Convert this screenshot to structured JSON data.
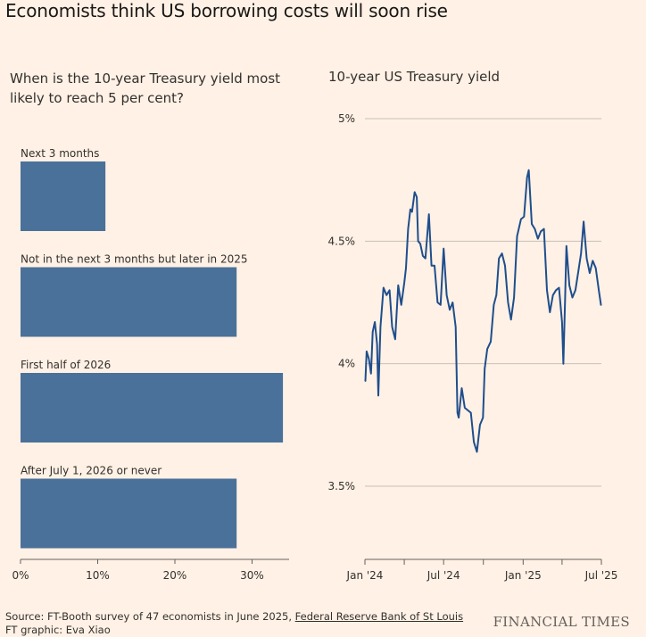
{
  "title": "Economists think US borrowing costs will soon rise",
  "source": {
    "prefix": "Source: FT-Booth survey of 47 economists in June 2025, ",
    "link_text": "Federal Reserve Bank of St Louis",
    "credit": "FT graphic: Eva Xiao"
  },
  "brand": "FINANCIAL TIMES",
  "colors": {
    "bar": "#4a7199",
    "line": "#1f4e8c",
    "grid": "#c8c0b9",
    "background": "#fff1e5"
  },
  "chart_data": [
    {
      "type": "bar",
      "orientation": "horizontal",
      "title": "When is the 10-year Treasury yield most likely to reach 5 per cent?",
      "categories": [
        "Next 3 months",
        "Not in the next 3 months but later in 2025",
        "First half of 2026",
        "After July 1, 2026 or never"
      ],
      "values": [
        11,
        28,
        34,
        28
      ],
      "unit": "%",
      "xlim": [
        0,
        34
      ],
      "xticks": [
        0,
        10,
        20,
        30
      ],
      "xtick_labels": [
        "0%",
        "10%",
        "20%",
        "30%"
      ]
    },
    {
      "type": "line",
      "title": "10-year US Treasury yield",
      "unit": "%",
      "ylim": [
        3.2,
        5.0
      ],
      "yticks": [
        3.5,
        4.0,
        4.5,
        5.0
      ],
      "ytick_labels": [
        "3.5%",
        "4%",
        "4.5%",
        "5%"
      ],
      "xlim": [
        "2024-01-01",
        "2025-07-01"
      ],
      "xtick_labels": [
        "Jan '24",
        "Jul '24",
        "Jan '25",
        "Jul '25"
      ],
      "xticks": [
        "2024-01-01",
        "2024-04-01",
        "2024-07-01",
        "2024-10-01",
        "2025-01-01",
        "2025-04-01",
        "2025-07-01"
      ],
      "grid": true,
      "x": [
        "2024-01-02",
        "2024-01-05",
        "2024-01-10",
        "2024-01-15",
        "2024-01-19",
        "2024-01-24",
        "2024-01-29",
        "2024-02-01",
        "2024-02-06",
        "2024-02-13",
        "2024-02-20",
        "2024-02-27",
        "2024-03-04",
        "2024-03-11",
        "2024-03-18",
        "2024-03-25",
        "2024-04-01",
        "2024-04-05",
        "2024-04-10",
        "2024-04-15",
        "2024-04-19",
        "2024-04-25",
        "2024-04-30",
        "2024-05-03",
        "2024-05-08",
        "2024-05-14",
        "2024-05-20",
        "2024-05-28",
        "2024-06-03",
        "2024-06-10",
        "2024-06-17",
        "2024-06-24",
        "2024-07-01",
        "2024-07-08",
        "2024-07-15",
        "2024-07-22",
        "2024-07-29",
        "2024-08-02",
        "2024-08-05",
        "2024-08-12",
        "2024-08-19",
        "2024-08-26",
        "2024-09-02",
        "2024-09-09",
        "2024-09-16",
        "2024-09-23",
        "2024-09-30",
        "2024-10-04",
        "2024-10-10",
        "2024-10-18",
        "2024-10-25",
        "2024-10-31",
        "2024-11-06",
        "2024-11-13",
        "2024-11-20",
        "2024-11-27",
        "2024-12-04",
        "2024-12-11",
        "2024-12-18",
        "2024-12-27",
        "2025-01-03",
        "2025-01-10",
        "2025-01-14",
        "2025-01-21",
        "2025-01-28",
        "2025-02-04",
        "2025-02-11",
        "2025-02-18",
        "2025-02-25",
        "2025-03-04",
        "2025-03-11",
        "2025-03-18",
        "2025-03-25",
        "2025-04-01",
        "2025-04-04",
        "2025-04-08",
        "2025-04-11",
        "2025-04-18",
        "2025-04-25",
        "2025-05-02",
        "2025-05-09",
        "2025-05-15",
        "2025-05-21",
        "2025-05-28",
        "2025-06-04",
        "2025-06-11",
        "2025-06-18",
        "2025-06-25",
        "2025-06-30"
      ],
      "y": [
        3.93,
        4.05,
        4.02,
        3.96,
        4.13,
        4.17,
        4.08,
        3.87,
        4.15,
        4.31,
        4.28,
        4.3,
        4.15,
        4.1,
        4.32,
        4.24,
        4.33,
        4.39,
        4.55,
        4.63,
        4.62,
        4.7,
        4.68,
        4.5,
        4.49,
        4.44,
        4.43,
        4.61,
        4.4,
        4.4,
        4.25,
        4.24,
        4.47,
        4.28,
        4.22,
        4.25,
        4.15,
        3.8,
        3.78,
        3.9,
        3.82,
        3.81,
        3.8,
        3.68,
        3.64,
        3.75,
        3.78,
        3.98,
        4.06,
        4.09,
        4.24,
        4.28,
        4.43,
        4.45,
        4.4,
        4.25,
        4.18,
        4.27,
        4.52,
        4.59,
        4.6,
        4.76,
        4.79,
        4.57,
        4.55,
        4.51,
        4.54,
        4.55,
        4.3,
        4.21,
        4.28,
        4.3,
        4.31,
        4.17,
        4.0,
        4.26,
        4.48,
        4.32,
        4.27,
        4.3,
        4.38,
        4.45,
        4.58,
        4.43,
        4.37,
        4.42,
        4.39,
        4.3,
        4.24
      ]
    }
  ]
}
